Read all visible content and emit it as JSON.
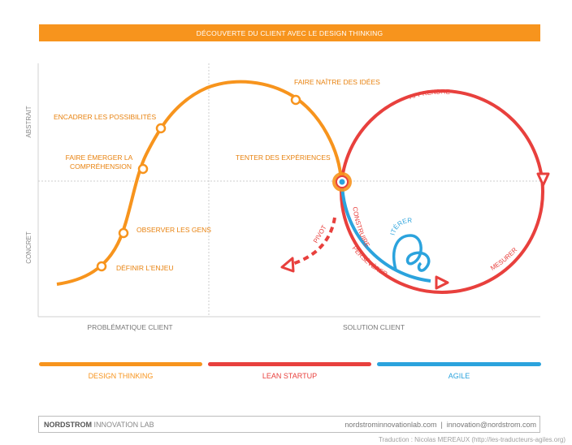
{
  "banner": {
    "title": "DÉCOUVERTE DU CLIENT AVEC LE DESIGN THINKING"
  },
  "axes": {
    "y_top": "ABSTRAIT",
    "y_bottom": "CONCRET",
    "x_left": "PROBLÉMATIQUE CLIENT",
    "x_right": "SOLUTION CLIENT"
  },
  "steps": {
    "definir": "DÉFINIR L'ENJEU",
    "observer": "OBSERVER LES GENS",
    "faire_line1": "FAIRE ÉMERGER LA",
    "faire_line2": "COMPRÉHENSION",
    "encadrer": "ENCADRER LES POSSIBILITÉS",
    "faire_naitre": "FAIRE NAÎTRE DES IDÉES",
    "tenter": "TENTER DES EXPÉRIENCES"
  },
  "loop_labels": {
    "apprendre": "APPRENDRE",
    "construire": "CONSTRUIRE",
    "mesurer": "MESURER",
    "perseverer": "PERSÉVÉRER",
    "pivot": "PIVOT",
    "iterer": "ITÉRER"
  },
  "legend": [
    {
      "label": "DESIGN THINKING",
      "color": "#f7941d"
    },
    {
      "label": "LEAN STARTUP",
      "color": "#e8403d"
    },
    {
      "label": "AGILE",
      "color": "#2ba3dd"
    }
  ],
  "footer": {
    "brand_bold": "NORDSTROM",
    "brand_rest": " INNOVATION LAB",
    "contact": "nordstrominnovationlab.com  |  innovation@nordstrom.com"
  },
  "credit": "Traduction : Nicolas MEREAUX (http://les-traducteurs-agiles.org)",
  "colors": {
    "orange": "#f7941d",
    "red": "#e8403d",
    "blue": "#2ba3dd"
  }
}
